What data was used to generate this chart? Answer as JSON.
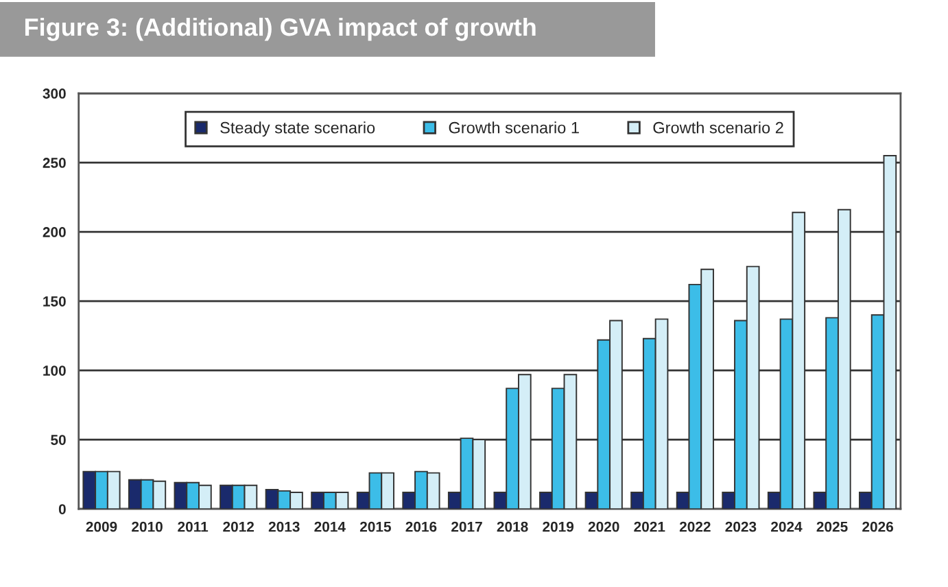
{
  "chart_data": {
    "type": "bar",
    "title": "Figure 3: (Additional) GVA impact of growth",
    "categories": [
      "2009",
      "2010",
      "2011",
      "2012",
      "2013",
      "2014",
      "2015",
      "2016",
      "2017",
      "2018",
      "2019",
      "2020",
      "2021",
      "2022",
      "2023",
      "2024",
      "2025",
      "2026"
    ],
    "series": [
      {
        "name": "Steady state scenario",
        "color": "#1a2a6c",
        "values": [
          27,
          21,
          19,
          17,
          14,
          12,
          12,
          12,
          12,
          12,
          12,
          12,
          12,
          12,
          12,
          12,
          12,
          12
        ]
      },
      {
        "name": "Growth scenario 1",
        "color": "#3cbde8",
        "values": [
          27,
          21,
          19,
          17,
          13,
          12,
          26,
          27,
          51,
          87,
          87,
          122,
          123,
          162,
          136,
          137,
          138,
          140
        ]
      },
      {
        "name": "Growth scenario 2",
        "color": "#d4eef7",
        "values": [
          27,
          20,
          17,
          17,
          12,
          12,
          26,
          26,
          50,
          97,
          97,
          136,
          137,
          173,
          175,
          214,
          216,
          255
        ]
      }
    ],
    "ylim": [
      0,
      300
    ],
    "yticks": [
      0,
      50,
      100,
      150,
      200,
      250,
      300
    ],
    "grid": "y",
    "legend": "top"
  }
}
